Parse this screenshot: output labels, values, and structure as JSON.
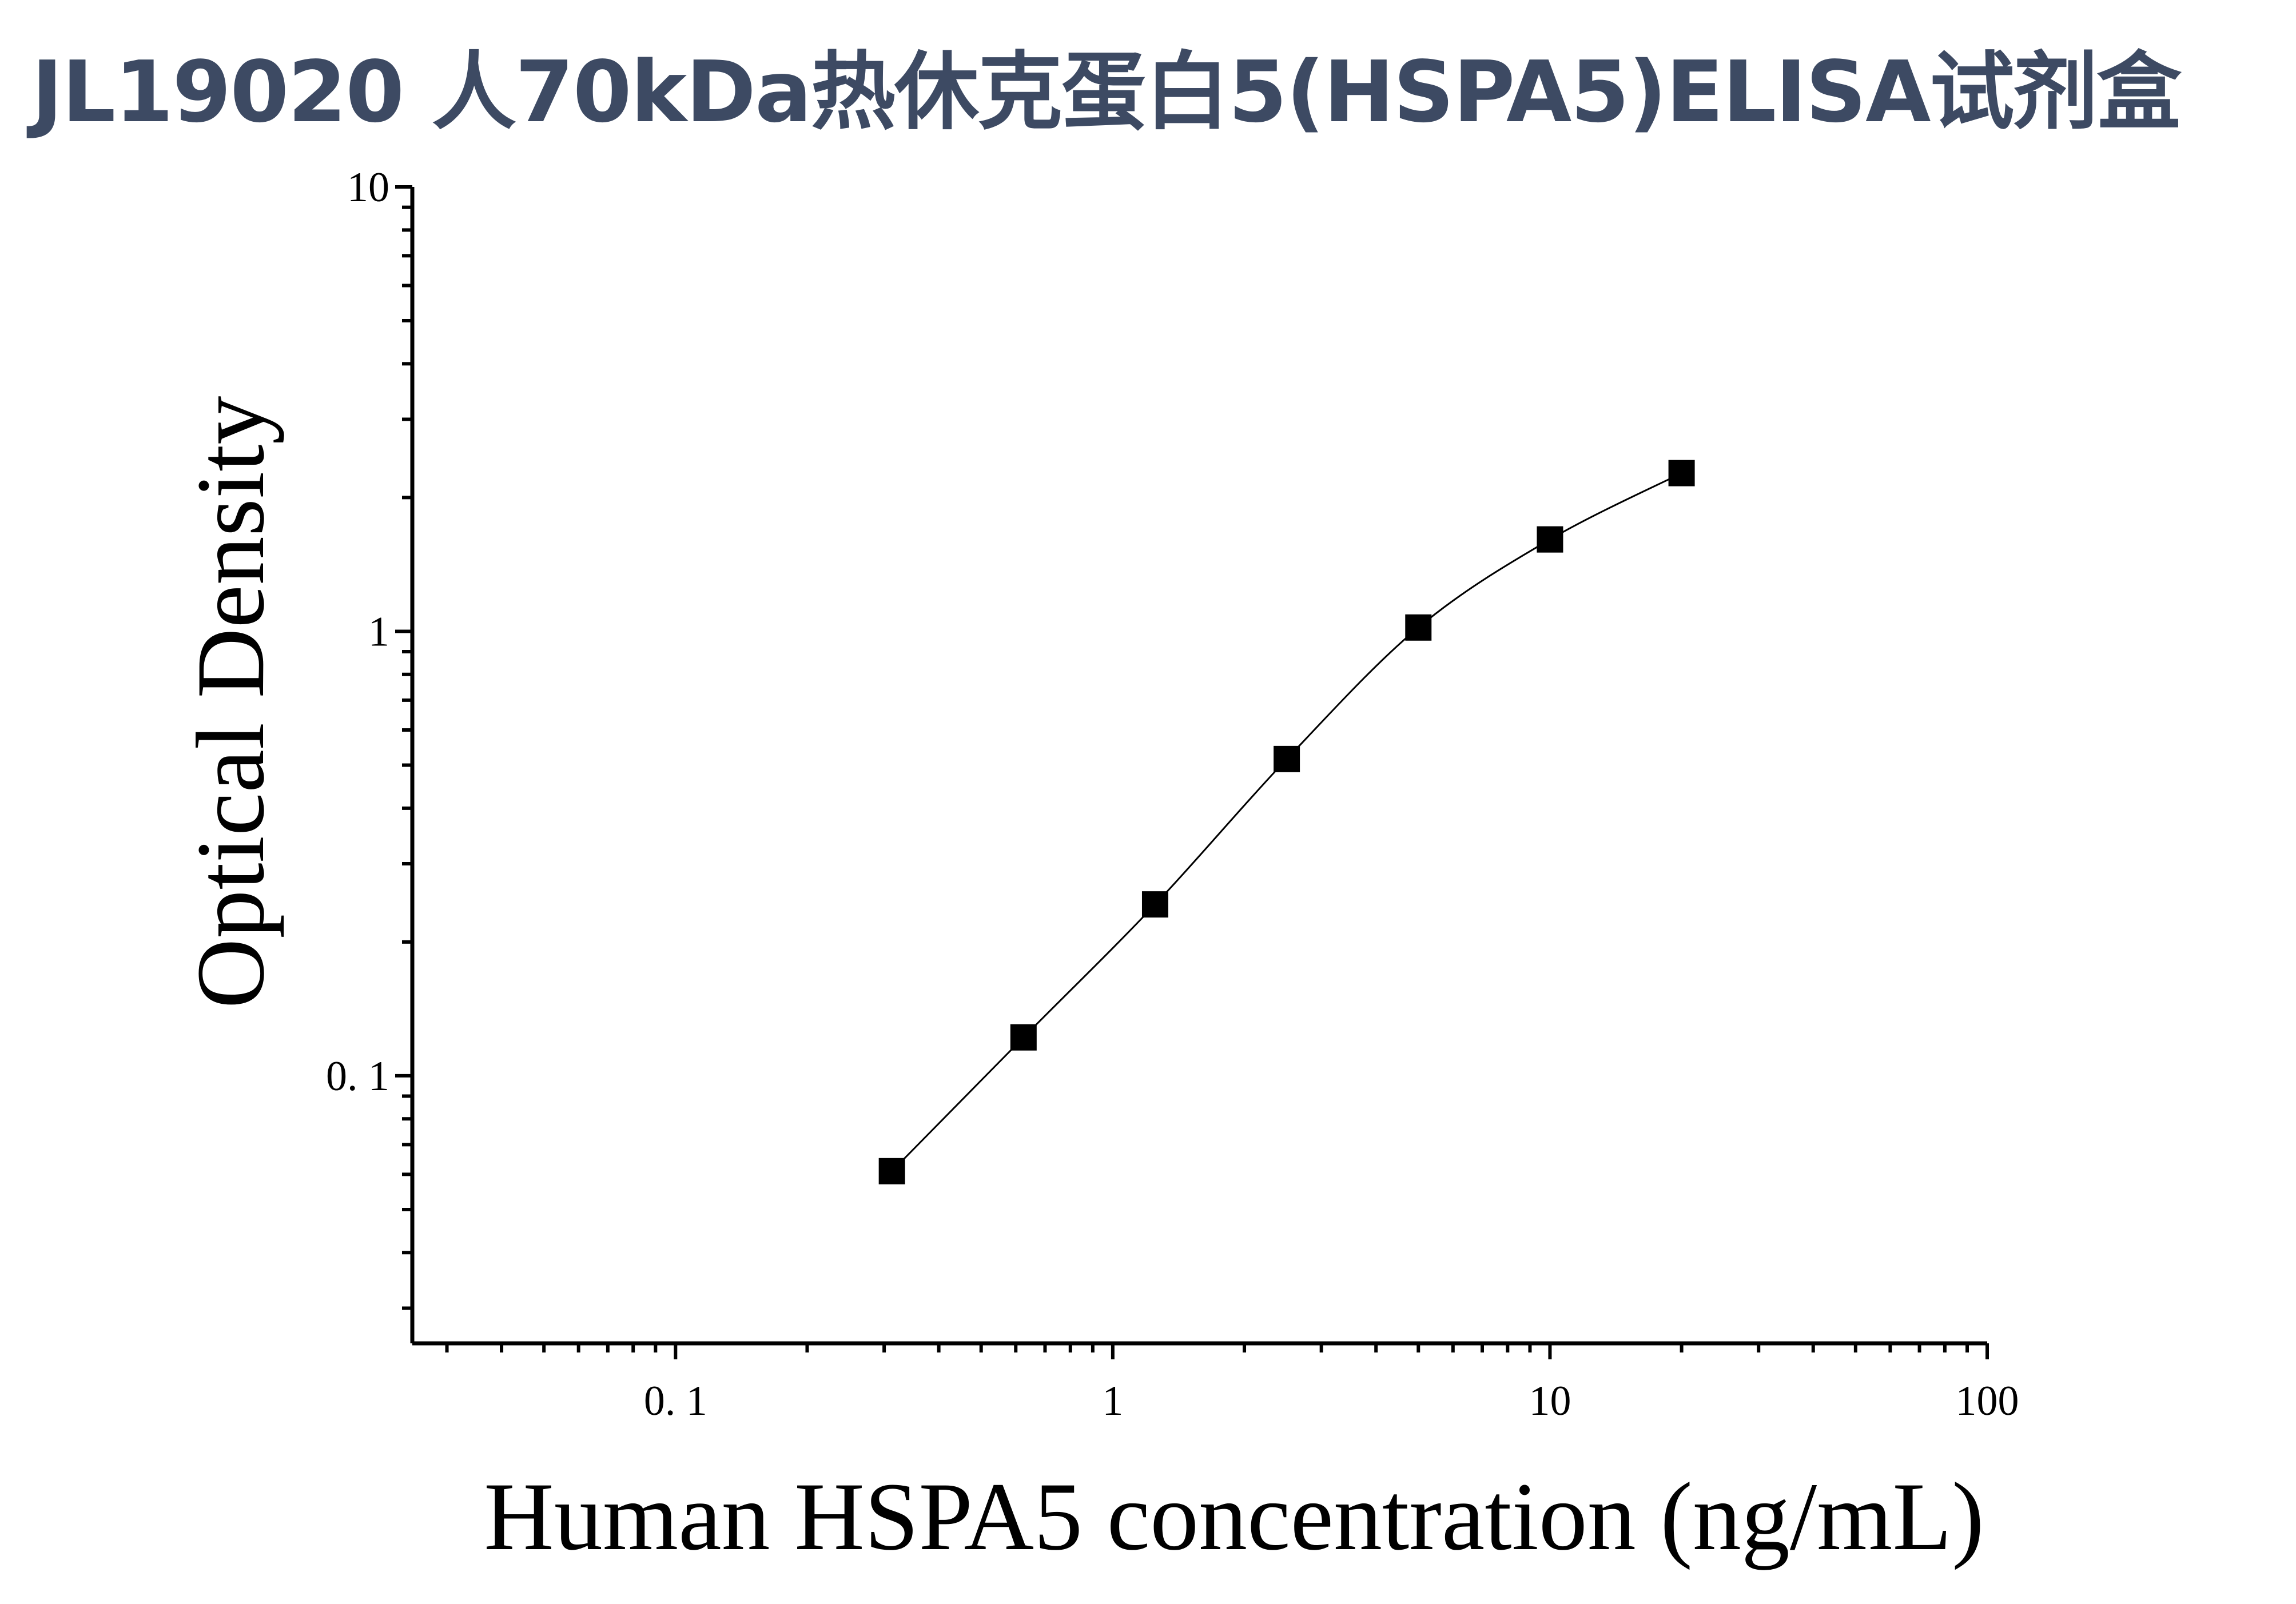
{
  "title": "JL19020 人70kDa热休克蛋白5(HSPA5)ELISA试剂盒",
  "chart_data": {
    "type": "scatter",
    "title": "JL19020 人70kDa热休克蛋白5(HSPA5)ELISA试剂盒",
    "xlabel": "Human HSPA5 concentration (ng/mL)",
    "ylabel": "Optical Density",
    "xscale": "log",
    "yscale": "log",
    "xlim": [
      0.025,
      100
    ],
    "ylim": [
      0.025,
      10
    ],
    "xticks": [
      {
        "v": 0.1,
        "label": "0. 1"
      },
      {
        "v": 1,
        "label": "1"
      },
      {
        "v": 10,
        "label": "10"
      },
      {
        "v": 100,
        "label": "100"
      }
    ],
    "yticks": [
      {
        "v": 0.1,
        "label": "0. 1"
      },
      {
        "v": 1,
        "label": "1"
      },
      {
        "v": 10,
        "label": "10"
      }
    ],
    "grid": false,
    "marker": "square",
    "fit_line": true,
    "x": [
      0.3125,
      0.625,
      1.25,
      2.5,
      5,
      10,
      20
    ],
    "y": [
      0.061,
      0.122,
      0.243,
      0.516,
      1.02,
      1.61,
      2.27
    ],
    "color": "#000000"
  }
}
